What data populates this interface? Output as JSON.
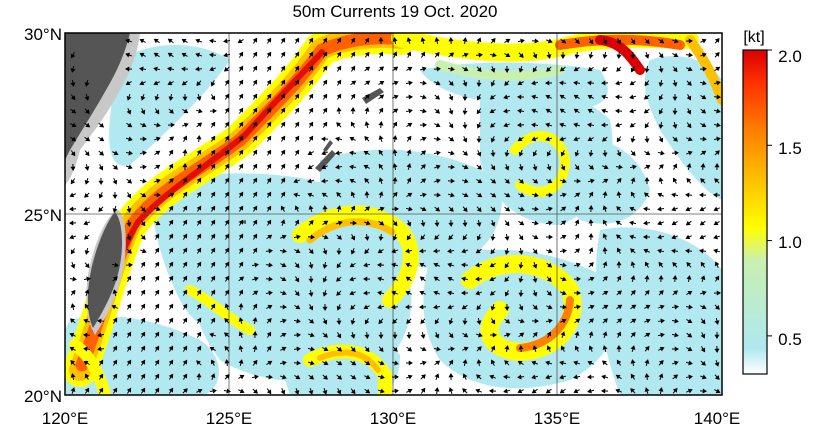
{
  "title": "50m Currents  19 Oct. 2020",
  "unit": "[kt]",
  "lat_labels": [
    "30°N",
    "25°N",
    "20°N"
  ],
  "lon_labels": [
    "120°E",
    "125°E",
    "130°E",
    "135°E",
    "140°E"
  ],
  "colorbar": {
    "ticks": [
      "2.0",
      "1.5",
      "1.0",
      "0.5"
    ],
    "tick_values": [
      2.0,
      1.5,
      1.0,
      0.5
    ],
    "min": 0.3,
    "max": 2.0,
    "colors": [
      "#ffffff",
      "#aee8f0",
      "#c8f0b0",
      "#ffff00",
      "#ffc000",
      "#ff8000",
      "#ff3000",
      "#d80000"
    ]
  },
  "map": {
    "lon_range": [
      120,
      140
    ],
    "lat_range": [
      20,
      30
    ],
    "grid": true
  }
}
